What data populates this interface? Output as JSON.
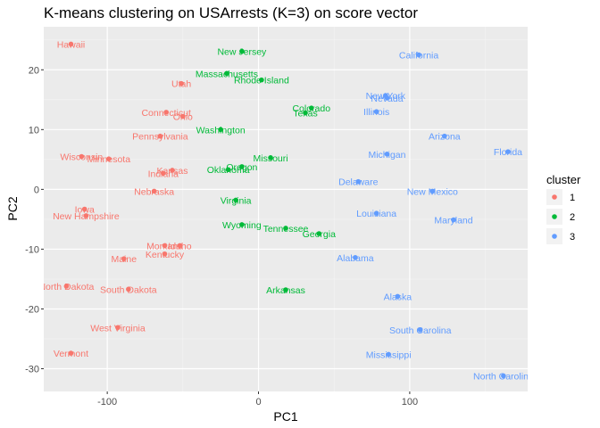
{
  "chart_data": {
    "type": "scatter",
    "title": "K-means clustering on USArrests (K=3) on score vector",
    "xlabel": "PC1",
    "ylabel": "PC2",
    "xlim": [
      -142,
      178
    ],
    "ylim": [
      -33.8,
      27.2
    ],
    "x_ticks": [
      -100,
      0,
      100
    ],
    "y_ticks": [
      -30,
      -20,
      -10,
      0,
      10,
      20
    ],
    "grid": true,
    "legend": {
      "title": "cluster",
      "position": "right",
      "entries": [
        {
          "label": "1",
          "color": "#F8766D"
        },
        {
          "label": "2",
          "color": "#00BA38"
        },
        {
          "label": "3",
          "color": "#619CFF"
        }
      ]
    },
    "series": [
      {
        "name": "1",
        "color": "#F8766D",
        "points": [
          {
            "label": "Hawaii",
            "x": -124,
            "y": 24.3
          },
          {
            "label": "Utah",
            "x": -51,
            "y": 17.7
          },
          {
            "label": "Connecticut",
            "x": -61,
            "y": 12.9
          },
          {
            "label": "Ohio",
            "x": -50,
            "y": 12.2
          },
          {
            "label": "Pennsylvania",
            "x": -65,
            "y": 8.9
          },
          {
            "label": "Wisconsin",
            "x": -117,
            "y": 5.5
          },
          {
            "label": "Minnesota",
            "x": -99,
            "y": 5.1
          },
          {
            "label": "Kansas",
            "x": -57,
            "y": 3.2
          },
          {
            "label": "Indiana",
            "x": -63,
            "y": 2.7
          },
          {
            "label": "Nebraska",
            "x": -69,
            "y": -0.3
          },
          {
            "label": "Iowa",
            "x": -115,
            "y": -3.3
          },
          {
            "label": "New Hampshire",
            "x": -114,
            "y": -4.4
          },
          {
            "label": "Montana",
            "x": -62,
            "y": -9.4
          },
          {
            "label": "Idaho",
            "x": -52,
            "y": -9.4
          },
          {
            "label": "Kentucky",
            "x": -62,
            "y": -10.8
          },
          {
            "label": "Maine",
            "x": -89,
            "y": -11.6
          },
          {
            "label": "North Dakota",
            "x": -127,
            "y": -16.2
          },
          {
            "label": "South Dakota",
            "x": -86,
            "y": -16.7
          },
          {
            "label": "West Virginia",
            "x": -93,
            "y": -23.1
          },
          {
            "label": "Vermont",
            "x": -124,
            "y": -27.4
          }
        ]
      },
      {
        "name": "2",
        "color": "#00BA38",
        "points": [
          {
            "label": "New Jersey",
            "x": -11,
            "y": 23.1
          },
          {
            "label": "Massachusetts",
            "x": -21,
            "y": 19.4
          },
          {
            "label": "Rhode Island",
            "x": 2,
            "y": 18.3
          },
          {
            "label": "Colorado",
            "x": 35,
            "y": 13.6
          },
          {
            "label": "Texas",
            "x": 31,
            "y": 12.8
          },
          {
            "label": "Washington",
            "x": -25,
            "y": 10.0
          },
          {
            "label": "Missouri",
            "x": 8,
            "y": 5.3
          },
          {
            "label": "Oregon",
            "x": -11,
            "y": 3.8
          },
          {
            "label": "Oklahoma",
            "x": -20,
            "y": 3.3
          },
          {
            "label": "Virginia",
            "x": -15,
            "y": -1.8
          },
          {
            "label": "Wyoming",
            "x": -11,
            "y": -5.9
          },
          {
            "label": "Tennessee",
            "x": 18,
            "y": -6.5
          },
          {
            "label": "Georgia",
            "x": 40,
            "y": -7.4
          },
          {
            "label": "Arkansas",
            "x": 18,
            "y": -16.8
          }
        ]
      },
      {
        "name": "3",
        "color": "#619CFF",
        "points": [
          {
            "label": "California",
            "x": 106,
            "y": 22.5
          },
          {
            "label": "New York",
            "x": 84,
            "y": 15.7
          },
          {
            "label": "Nevada",
            "x": 85,
            "y": 15.3
          },
          {
            "label": "Illinois",
            "x": 78,
            "y": 13.0
          },
          {
            "label": "Arizona",
            "x": 123,
            "y": 8.9
          },
          {
            "label": "Florida",
            "x": 165,
            "y": 6.3
          },
          {
            "label": "Michigan",
            "x": 85,
            "y": 5.9
          },
          {
            "label": "Delaware",
            "x": 66,
            "y": 1.3
          },
          {
            "label": "New Mexico",
            "x": 115,
            "y": -0.3
          },
          {
            "label": "Louisiana",
            "x": 78,
            "y": -4.0
          },
          {
            "label": "Maryland",
            "x": 129,
            "y": -5.1
          },
          {
            "label": "Alabama",
            "x": 64,
            "y": -11.4
          },
          {
            "label": "Alaska",
            "x": 92,
            "y": -17.9
          },
          {
            "label": "South Carolina",
            "x": 107,
            "y": -23.5
          },
          {
            "label": "Mississippi",
            "x": 86,
            "y": -27.6
          },
          {
            "label": "North Carolina",
            "x": 162,
            "y": -31.2
          }
        ]
      }
    ]
  }
}
